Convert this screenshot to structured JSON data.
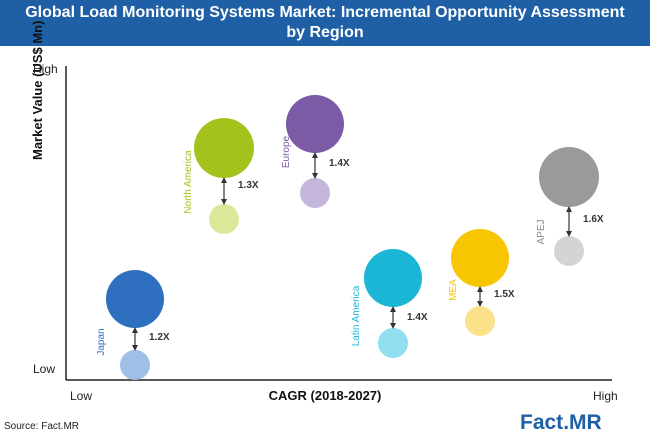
{
  "title": {
    "line1": "Global Load Monitoring Systems Market: Incremental Opportunity Assessment",
    "line2": "by Region"
  },
  "source": "Source: Fact.MR",
  "logo": {
    "part1": "Fact",
    "part2": ".MR"
  },
  "chart_data": {
    "type": "bubble",
    "title": "Global Load Monitoring Systems Market: Incremental Opportunity Assessment by Region",
    "xlabel": "CAGR (2018-2027)",
    "ylabel": "Market Value (US$ Mn)",
    "x_ticks": [
      "Low",
      "High"
    ],
    "y_ticks": [
      "High",
      "Low"
    ],
    "regions": [
      {
        "name": "Japan",
        "growth_label": "1.2X",
        "color_large": "#2e6fc0",
        "color_small": "#9fbfe6"
      },
      {
        "name": "North America",
        "growth_label": "1.3X",
        "color_large": "#a4c21c",
        "color_small": "#dbe89a"
      },
      {
        "name": "Europe",
        "growth_label": "1.4X",
        "color_large": "#7b5aa6",
        "color_small": "#c5b6db"
      },
      {
        "name": "Latin America",
        "growth_label": "1.4X",
        "color_large": "#1bb6d6",
        "color_small": "#8fdff0"
      },
      {
        "name": "MEA",
        "growth_label": "1.5X",
        "color_large": "#f7c600",
        "color_small": "#fbe28a"
      },
      {
        "name": "APEJ",
        "growth_label": "1.6X",
        "color_large": "#9a9a9a",
        "color_small": "#d4d4d4"
      }
    ]
  }
}
